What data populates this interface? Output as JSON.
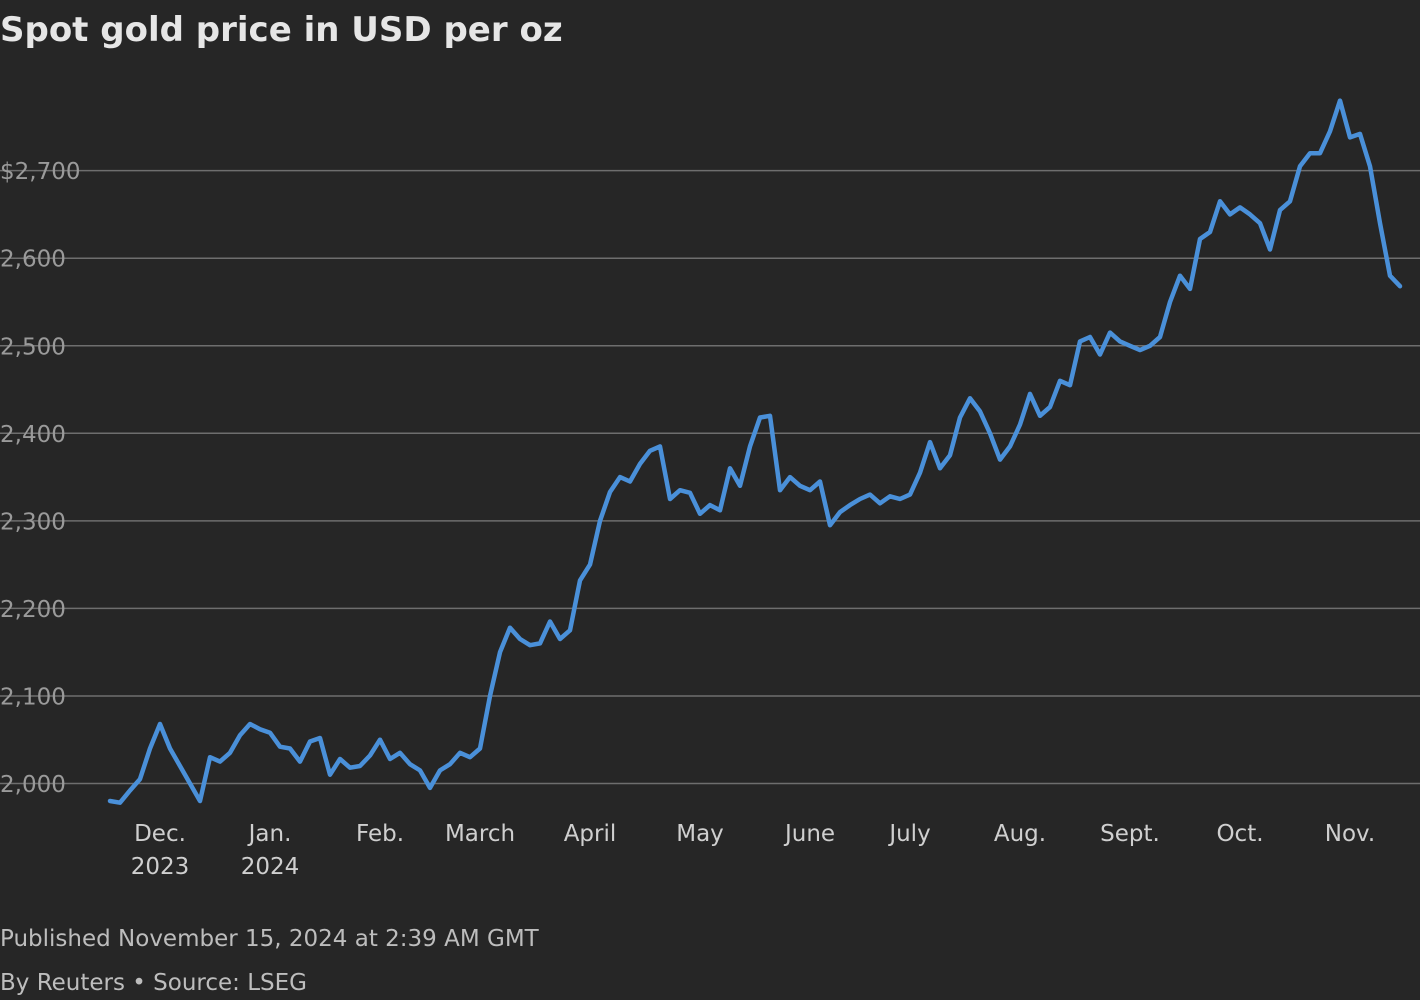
{
  "chart_data": {
    "type": "line",
    "title": "Spot gold price in USD per oz",
    "categories": [
      null,
      null,
      null,
      null,
      null,
      "Dec.\n2023",
      null,
      null,
      null,
      null,
      null,
      null,
      null,
      null,
      null,
      null,
      "Jan.\n2024",
      null,
      null,
      null,
      null,
      null,
      null,
      null,
      null,
      null,
      null,
      "Feb.",
      null,
      null,
      null,
      null,
      null,
      null,
      null,
      null,
      null,
      "March",
      null,
      null,
      null,
      null,
      null,
      null,
      null,
      null,
      null,
      null,
      "April",
      null,
      null,
      null,
      null,
      null,
      null,
      null,
      null,
      null,
      null,
      "May",
      null,
      null,
      null,
      null,
      null,
      null,
      null,
      null,
      null,
      null,
      "June",
      null,
      null,
      null,
      null,
      null,
      null,
      null,
      null,
      null,
      "July",
      null,
      null,
      null,
      null,
      null,
      null,
      null,
      null,
      null,
      null,
      "Aug.",
      null,
      null,
      null,
      null,
      null,
      null,
      null,
      null,
      null,
      null,
      "Sept.",
      null,
      null,
      null,
      null,
      null,
      null,
      null,
      null,
      null,
      null,
      "Oct.",
      null,
      null,
      null,
      null,
      null,
      null,
      null,
      null,
      null,
      null,
      "Nov.",
      null,
      null,
      null,
      null,
      null
    ],
    "values": [
      1980,
      1978,
      1992,
      2005,
      2040,
      2068,
      2040,
      2020,
      2000,
      1980,
      2030,
      2025,
      2035,
      2055,
      2068,
      2062,
      2058,
      2042,
      2040,
      2025,
      2048,
      2052,
      2010,
      2028,
      2018,
      2020,
      2032,
      2050,
      2028,
      2035,
      2022,
      2015,
      1995,
      2015,
      2022,
      2035,
      2030,
      2040,
      2100,
      2150,
      2178,
      2165,
      2158,
      2160,
      2185,
      2165,
      2175,
      2232,
      2250,
      2300,
      2333,
      2350,
      2345,
      2365,
      2380,
      2385,
      2325,
      2335,
      2332,
      2308,
      2318,
      2312,
      2360,
      2340,
      2385,
      2418,
      2420,
      2335,
      2350,
      2340,
      2335,
      2345,
      2295,
      2310,
      2318,
      2325,
      2330,
      2320,
      2328,
      2325,
      2330,
      2355,
      2390,
      2360,
      2375,
      2418,
      2440,
      2425,
      2400,
      2370,
      2385,
      2410,
      2445,
      2420,
      2430,
      2460,
      2455,
      2505,
      2510,
      2490,
      2515,
      2505,
      2500,
      2495,
      2500,
      2510,
      2550,
      2580,
      2565,
      2622,
      2630,
      2665,
      2650,
      2658,
      2650,
      2640,
      2610,
      2655,
      2665,
      2705,
      2720,
      2720,
      2745,
      2780,
      2738,
      2742,
      2705,
      2640,
      2580,
      2568
    ],
    "color": "#4a90d9",
    "ylim": [
      1964,
      2815
    ],
    "yticks": [
      {
        "value": 2000,
        "label": "2,000"
      },
      {
        "value": 2100,
        "label": "2,100"
      },
      {
        "value": 2200,
        "label": "2,200"
      },
      {
        "value": 2300,
        "label": "2,300"
      },
      {
        "value": 2400,
        "label": "2,400"
      },
      {
        "value": 2500,
        "label": "2,500"
      },
      {
        "value": 2600,
        "label": "2,600"
      },
      {
        "value": 2700,
        "label": "$2,700"
      }
    ],
    "grid": true,
    "published": "Published November 15, 2024 at 2:39 AM GMT",
    "byline": "By Reuters • Source: LSEG"
  }
}
